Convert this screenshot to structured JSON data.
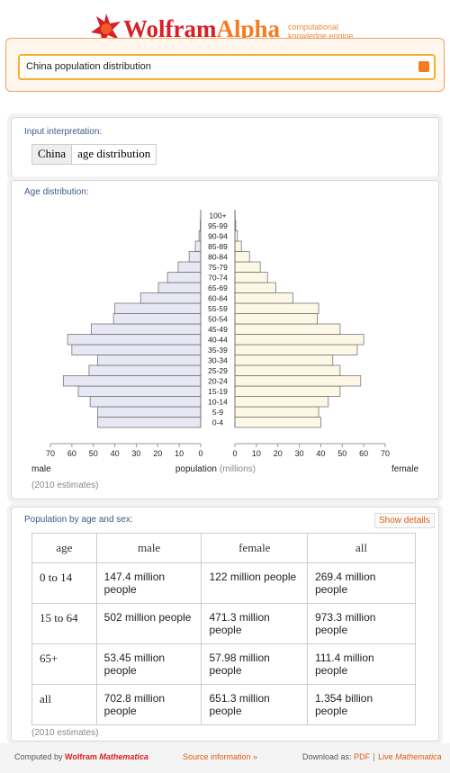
{
  "header": {
    "logo_part1": "Wolfram",
    "logo_part2": "Alpha",
    "tagline_line1": "computational",
    "tagline_line2": "knowledge engine",
    "query": "China population distribution"
  },
  "input_pod": {
    "title": "Input interpretation:",
    "terms": [
      "China",
      "age distribution"
    ]
  },
  "chart_data": {
    "type": "pyramid",
    "title": "Age distribution:",
    "categories": [
      "0-4",
      "5-9",
      "10-14",
      "15-19",
      "20-24",
      "25-29",
      "30-34",
      "35-39",
      "40-44",
      "45-49",
      "50-54",
      "55-59",
      "60-64",
      "65-69",
      "70-74",
      "75-79",
      "80-84",
      "85-89",
      "90-94",
      "95-99",
      "100+"
    ],
    "series": [
      {
        "name": "male",
        "color": "#e8e8f4",
        "values": [
          48,
          48,
          51.5,
          57,
          64,
          52,
          48,
          60,
          62,
          51,
          40.6,
          40,
          28,
          19.7,
          15.5,
          10.5,
          5.4,
          2.5,
          0.8,
          0.2,
          0.05
        ]
      },
      {
        "name": "female",
        "color": "#fdf8e6",
        "values": [
          40,
          39,
          43.5,
          49,
          58.6,
          49,
          45.6,
          57,
          60,
          49,
          38.4,
          39,
          27,
          19,
          15.2,
          11.8,
          6.8,
          3,
          1.2,
          0.4,
          0.1
        ]
      }
    ],
    "xlim": [
      0,
      70
    ],
    "xticks": [
      0,
      10,
      20,
      30,
      40,
      50,
      60,
      70
    ],
    "x_label": "population",
    "x_unit": "(millions)",
    "note": "(2010 estimates)"
  },
  "table_pod": {
    "title": "Population by age and sex:",
    "button": "Show details",
    "header": [
      "age",
      "male",
      "female",
      "all"
    ],
    "rows": [
      [
        "0 to 14",
        "147.4 million people",
        "122 million people",
        "269.4 million people"
      ],
      [
        "15 to 64",
        "502 million people",
        "471.3 million people",
        "973.3 million people"
      ],
      [
        "65+",
        "53.45 million people",
        "57.98 million people",
        "111.4 million people"
      ],
      [
        "all",
        "702.8 million people",
        "651.3 million people",
        "1.354 billion people"
      ]
    ],
    "note": "(2010 estimates)"
  },
  "footer": {
    "computed_by": "Computed by",
    "wolfram": "Wolfram",
    "mathematica": "Mathematica",
    "source": "Source information »",
    "download": "Download as:",
    "pdf": "PDF",
    "live": "Live",
    "live_mathematica": "Mathematica"
  }
}
